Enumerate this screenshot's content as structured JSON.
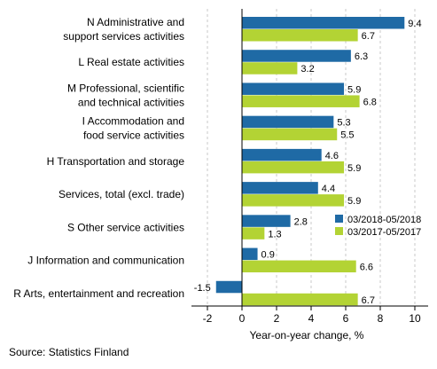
{
  "chart_data": {
    "type": "bar",
    "orientation": "horizontal",
    "categories": [
      [
        "N Administrative and",
        "support services activities"
      ],
      [
        "L Real estate activities"
      ],
      [
        "M Professional, scientific",
        "and technical activities"
      ],
      [
        "I Accommodation and",
        "food service activities"
      ],
      [
        "H Transportation and storage"
      ],
      [
        "Services, total (excl. trade)"
      ],
      [
        "S Other service activities"
      ],
      [
        "J Information and communication"
      ],
      [
        "R Arts, entertainment and recreation"
      ]
    ],
    "series": [
      {
        "name": "03/2018-05/2018",
        "color": "#1f6aa5",
        "values": [
          9.4,
          6.3,
          5.9,
          5.3,
          4.6,
          4.4,
          2.8,
          0.9,
          -1.5
        ]
      },
      {
        "name": "03/2017-05/2017",
        "color": "#b3d334",
        "values": [
          6.7,
          3.2,
          6.8,
          5.5,
          5.9,
          5.9,
          1.3,
          6.6,
          6.7
        ]
      }
    ],
    "xlabel": "Year-on-year change, %",
    "xlim": [
      -3,
      11
    ],
    "xticks": [
      -2,
      0,
      2,
      4,
      6,
      8,
      10
    ],
    "grid": true,
    "legend": "right"
  },
  "source": "Source: Statistics Finland"
}
